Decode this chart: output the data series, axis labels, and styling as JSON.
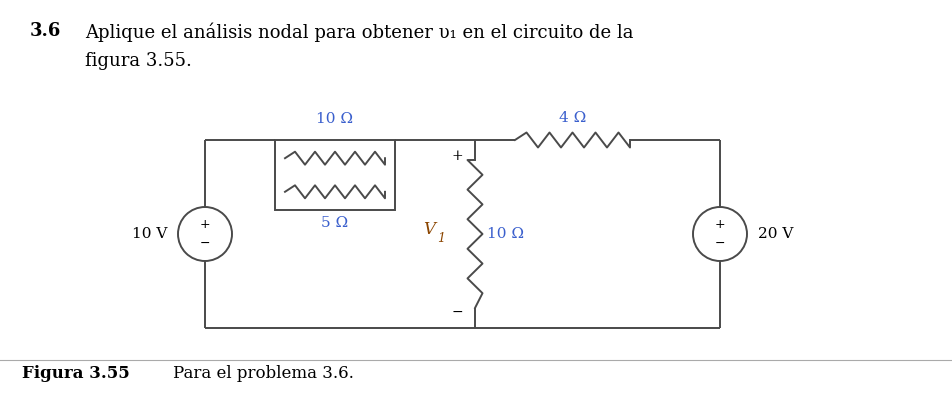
{
  "title_number": "3.6",
  "title_text": "Aplique el análisis nodal para obtener υ₁ en el circuito de la",
  "title_line2": "figura 3.55.",
  "fig_caption_bold": "Figura 3.55",
  "fig_caption_normal": "    Para el problema 3.6.",
  "background_color": "#ffffff",
  "text_color": "#000000",
  "line_color": "#4a4a4a",
  "component_color": "#3a5fcd",
  "v1_color": "#8b4500",
  "resistor_10_top_label": "10 Ω",
  "resistor_5_label": "5 Ω",
  "resistor_4_label": "4 Ω",
  "resistor_10_mid_label": "10 Ω",
  "v1_label": "V",
  "v1_sub": "1",
  "source_left_label": "10 V",
  "source_right_label": "20 V"
}
